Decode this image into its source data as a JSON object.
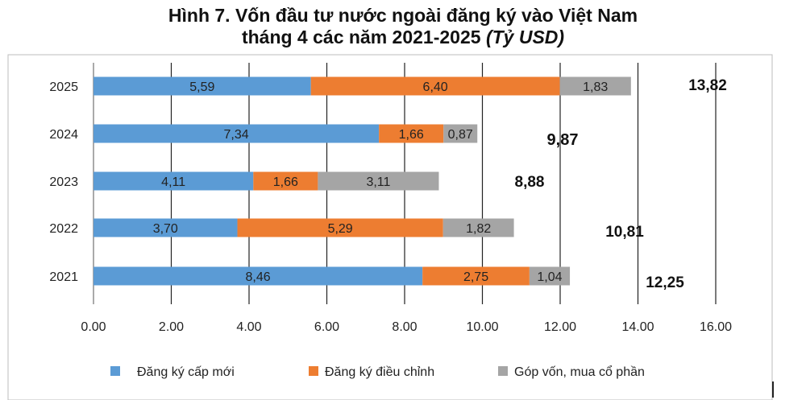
{
  "title_line1": "Hình 7. Vốn đầu tư nước ngoài đăng ký vào Việt Nam",
  "title_line2_main": "tháng 4 các năm 2021-2025 ",
  "title_line2_unit": "(Tỷ USD)",
  "colors": {
    "new": "#5B9BD5",
    "adjusted": "#ED7D31",
    "capital": "#A5A5A5"
  },
  "chart_data": {
    "type": "bar",
    "orientation": "horizontal",
    "stacked": true,
    "categories": [
      "2025",
      "2024",
      "2023",
      "2022",
      "2021"
    ],
    "series": [
      {
        "name": "Đăng ký cấp mới",
        "values": [
          5.59,
          7.34,
          4.11,
          3.7,
          8.46
        ],
        "labels": [
          "5,59",
          "7,34",
          "4,11",
          "3,70",
          "8,46"
        ]
      },
      {
        "name": "Đăng ký điều chỉnh",
        "values": [
          6.4,
          1.66,
          1.66,
          5.29,
          2.75
        ],
        "labels": [
          "6,40",
          "1,66",
          "1,66",
          "5,29",
          "2,75"
        ]
      },
      {
        "name": "Góp vốn, mua cổ phần",
        "values": [
          1.83,
          0.87,
          3.11,
          1.82,
          1.04
        ],
        "labels": [
          "1,83",
          "0,87",
          "3,11",
          "1,82",
          "1,04"
        ]
      }
    ],
    "totals": [
      "13,82",
      "9,87",
      "8,88",
      "10,81",
      "12,25"
    ],
    "xlim": [
      0,
      16
    ],
    "xticks": [
      "0.00",
      "2.00",
      "4.00",
      "6.00",
      "8.00",
      "10.00",
      "12.00",
      "14.00",
      "16.00"
    ],
    "grid": true,
    "legend_position": "bottom"
  }
}
